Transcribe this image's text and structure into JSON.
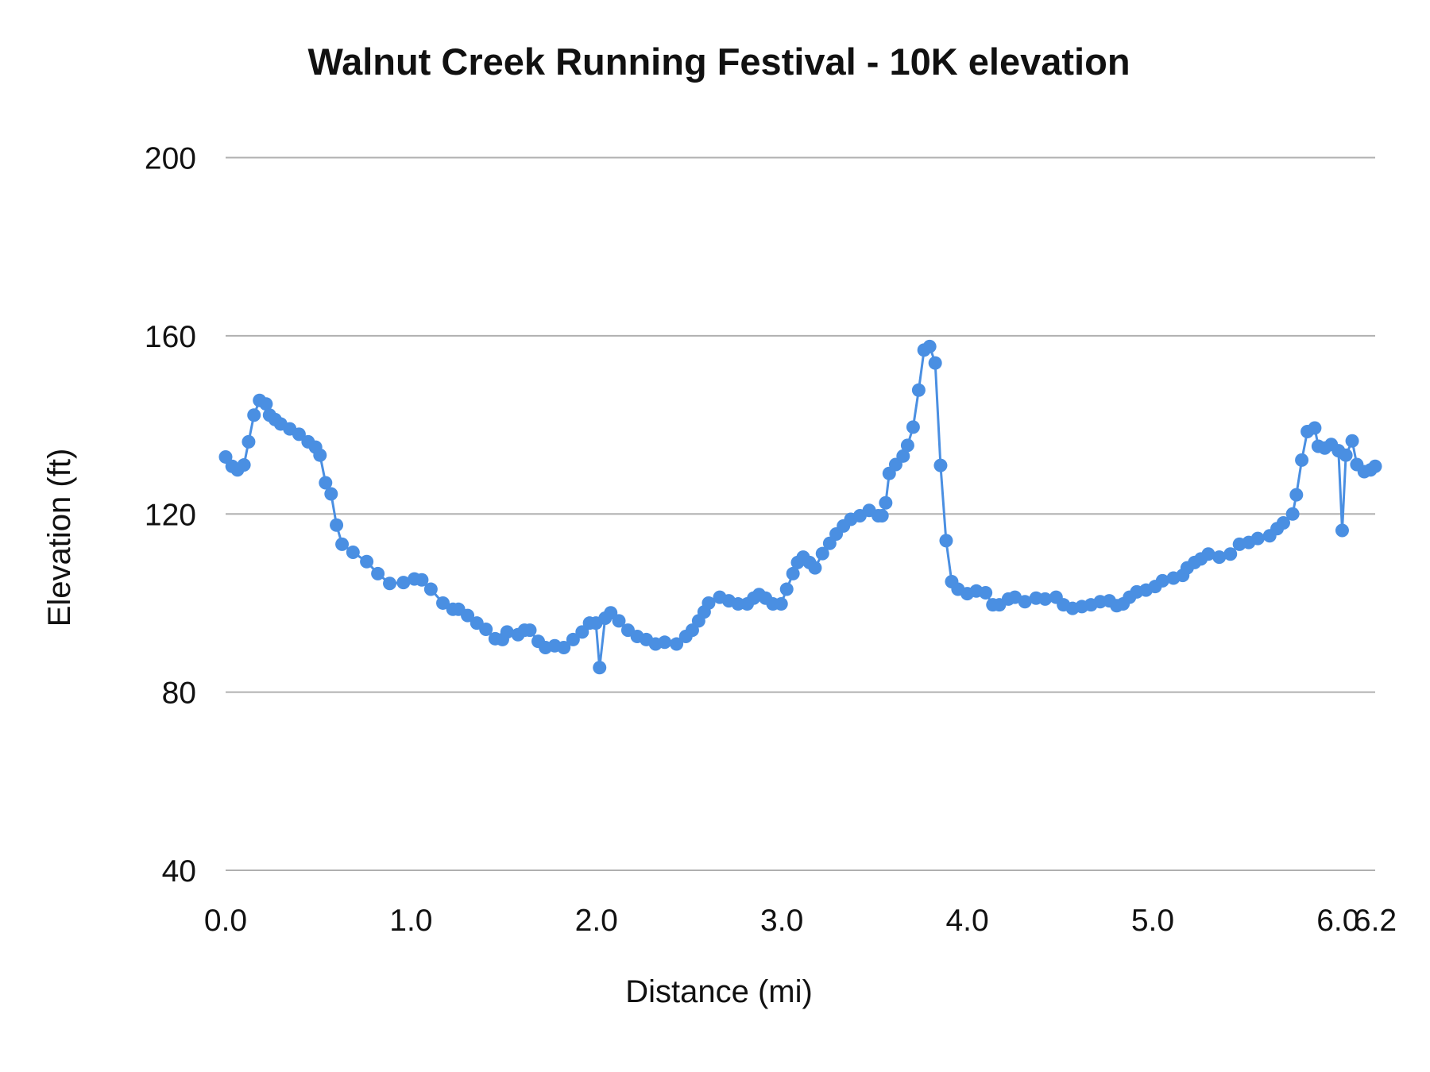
{
  "chart_data": {
    "type": "line",
    "title": "Walnut Creek Running Festival - 10K elevation",
    "xlabel": "Distance (mi)",
    "ylabel": "Elevation (ft)",
    "xlim": [
      0,
      6.2
    ],
    "ylim": [
      40,
      200
    ],
    "x_ticks": [
      0,
      1,
      2,
      3,
      4,
      5,
      6,
      6.2
    ],
    "x_tick_labels": [
      "0.0",
      "1.0",
      "2.0",
      "3.0",
      "4.0",
      "5.0",
      "6.0",
      "6.2"
    ],
    "y_ticks": [
      40,
      80,
      120,
      160,
      200
    ],
    "y_tick_labels": [
      "40",
      "80",
      "120",
      "160",
      "200"
    ],
    "grid": "horizontal",
    "legend": "none",
    "series_color": "#4a8fe2",
    "grid_color": "#b0b0b0",
    "series": [
      {
        "x": [
          0,
          0.035,
          0.064,
          0.099,
          0.124,
          0.153,
          0.183,
          0.218,
          0.237,
          0.267,
          0.297,
          0.346,
          0.396,
          0.445,
          0.485,
          0.509,
          0.539,
          0.569,
          0.598,
          0.628,
          0.687,
          0.761,
          0.821,
          0.885,
          0.959,
          1.018,
          1.058,
          1.107,
          1.172,
          1.226,
          1.256,
          1.305,
          1.355,
          1.404,
          1.454,
          1.493,
          1.518,
          1.577,
          1.612,
          1.641,
          1.686,
          1.725,
          1.775,
          1.824,
          1.874,
          1.923,
          1.963,
          1.997,
          2.017,
          2.047,
          2.077,
          2.121,
          2.17,
          2.22,
          2.269,
          2.319,
          2.368,
          2.432,
          2.482,
          2.517,
          2.551,
          2.581,
          2.605,
          2.665,
          2.714,
          2.764,
          2.813,
          2.848,
          2.877,
          2.912,
          2.952,
          2.996,
          3.026,
          3.06,
          3.085,
          3.115,
          3.149,
          3.179,
          3.219,
          3.258,
          3.293,
          3.332,
          3.372,
          3.421,
          3.471,
          3.52,
          3.54,
          3.56,
          3.579,
          3.614,
          3.654,
          3.678,
          3.708,
          3.738,
          3.767,
          3.797,
          3.827,
          3.856,
          3.886,
          3.916,
          3.95,
          4.0,
          4.049,
          4.099,
          4.138,
          4.173,
          4.222,
          4.257,
          4.311,
          4.371,
          4.42,
          4.479,
          4.519,
          4.568,
          4.618,
          4.667,
          4.717,
          4.766,
          4.806,
          4.84,
          4.875,
          4.914,
          4.964,
          5.013,
          5.053,
          5.112,
          5.162,
          5.186,
          5.226,
          5.26,
          5.3,
          5.359,
          5.419,
          5.468,
          5.518,
          5.567,
          5.631,
          5.671,
          5.705,
          5.755,
          5.775,
          5.804,
          5.834,
          5.874,
          5.893,
          5.928,
          5.963,
          6.002,
          6.022,
          6.042,
          6.076,
          6.101,
          6.141,
          6.175,
          6.2
        ],
        "y": [
          132.8,
          130.7,
          129.9,
          131,
          136.2,
          142.2,
          145.5,
          144.7,
          142.2,
          141.2,
          140.2,
          139.1,
          137.9,
          136.2,
          135,
          133.2,
          127,
          124.5,
          117.5,
          113.2,
          111.4,
          109.3,
          106.6,
          104.4,
          104.6,
          105.4,
          105.2,
          103.1,
          100,
          98.6,
          98.6,
          97.2,
          95.5,
          94.1,
          92,
          91.8,
          93.5,
          92.9,
          93.9,
          93.9,
          91.4,
          90,
          90.4,
          90,
          91.8,
          93.5,
          95.5,
          95.5,
          85.5,
          96.6,
          97.8,
          96,
          93.9,
          92.5,
          91.8,
          90.8,
          91.2,
          90.8,
          92.5,
          93.9,
          96,
          98,
          100,
          101.3,
          100.5,
          99.8,
          99.8,
          101.1,
          101.9,
          101.1,
          99.8,
          99.8,
          103.1,
          106.6,
          109.1,
          110.3,
          109.1,
          107.9,
          111.1,
          113.4,
          115.5,
          117.3,
          118.8,
          119.6,
          120.8,
          119.6,
          119.6,
          122.5,
          129.1,
          131.1,
          133,
          135.4,
          139.5,
          147.8,
          156.8,
          157.6,
          153.9,
          130.9,
          114,
          104.8,
          103.1,
          102.1,
          102.7,
          102.3,
          99.6,
          99.6,
          100.9,
          101.3,
          100.3,
          101.1,
          100.9,
          101.3,
          99.6,
          98.8,
          99.2,
          99.6,
          100.3,
          100.5,
          99.4,
          99.8,
          101.3,
          102.5,
          102.9,
          103.7,
          105,
          105.6,
          106.2,
          107.9,
          109.1,
          109.9,
          111,
          110.3,
          111,
          113.2,
          113.6,
          114.5,
          115.1,
          116.7,
          118,
          120,
          124.3,
          132.1,
          138.5,
          139.3,
          135.2,
          134.8,
          135.6,
          134.2,
          116.3,
          133.2,
          136.4,
          131.1,
          129.5,
          129.9,
          130.7
        ]
      }
    ]
  }
}
